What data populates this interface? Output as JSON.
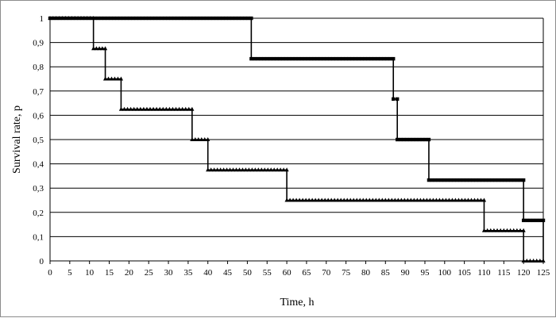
{
  "chart_data": {
    "type": "line",
    "title": "",
    "xlabel": "Time, h",
    "ylabel": "Survival rate, p",
    "xlim": [
      0,
      125
    ],
    "ylim": [
      0,
      1
    ],
    "x_ticks": [
      0,
      5,
      10,
      15,
      20,
      25,
      30,
      35,
      40,
      45,
      50,
      55,
      60,
      65,
      70,
      75,
      80,
      85,
      90,
      95,
      100,
      105,
      110,
      115,
      120,
      125
    ],
    "x_tick_labels": [
      "0",
      "5",
      "10",
      "15",
      "20",
      "25",
      "30",
      "35",
      "40",
      "45",
      "50",
      "55",
      "60",
      "65",
      "70",
      "75",
      "80",
      "85",
      "90",
      "95",
      "100",
      "105",
      "110",
      "115",
      "120",
      "125"
    ],
    "y_ticks": [
      0,
      0.1,
      0.2,
      0.3,
      0.4,
      0.5,
      0.6,
      0.7,
      0.8,
      0.9,
      1
    ],
    "y_tick_labels": [
      "0",
      "0,1",
      "0,2",
      "0,3",
      "0,4",
      "0,5",
      "0,6",
      "0,7",
      "0,8",
      "0,9",
      "1"
    ],
    "grid": "horizontal",
    "legend": "none",
    "series": [
      {
        "marker": "square",
        "color": "#000000",
        "step_points": [
          [
            0,
            1
          ],
          [
            51,
            1
          ],
          [
            51,
            0.833
          ],
          [
            87,
            0.833
          ],
          [
            87,
            0.667
          ],
          [
            88,
            0.667
          ],
          [
            88,
            0.5
          ],
          [
            96,
            0.5
          ],
          [
            96,
            0.333
          ],
          [
            120,
            0.333
          ],
          [
            120,
            0.167
          ],
          [
            125,
            0.167
          ],
          [
            125,
            0
          ]
        ]
      },
      {
        "marker": "triangle",
        "color": "#000000",
        "step_points": [
          [
            0,
            1
          ],
          [
            11,
            1
          ],
          [
            11,
            0.875
          ],
          [
            14,
            0.875
          ],
          [
            14,
            0.75
          ],
          [
            18,
            0.75
          ],
          [
            18,
            0.625
          ],
          [
            36,
            0.625
          ],
          [
            36,
            0.5
          ],
          [
            40,
            0.5
          ],
          [
            40,
            0.375
          ],
          [
            60,
            0.375
          ],
          [
            60,
            0.25
          ],
          [
            110,
            0.25
          ],
          [
            110,
            0.125
          ],
          [
            120,
            0.125
          ],
          [
            120,
            0
          ],
          [
            125,
            0
          ]
        ]
      }
    ]
  }
}
